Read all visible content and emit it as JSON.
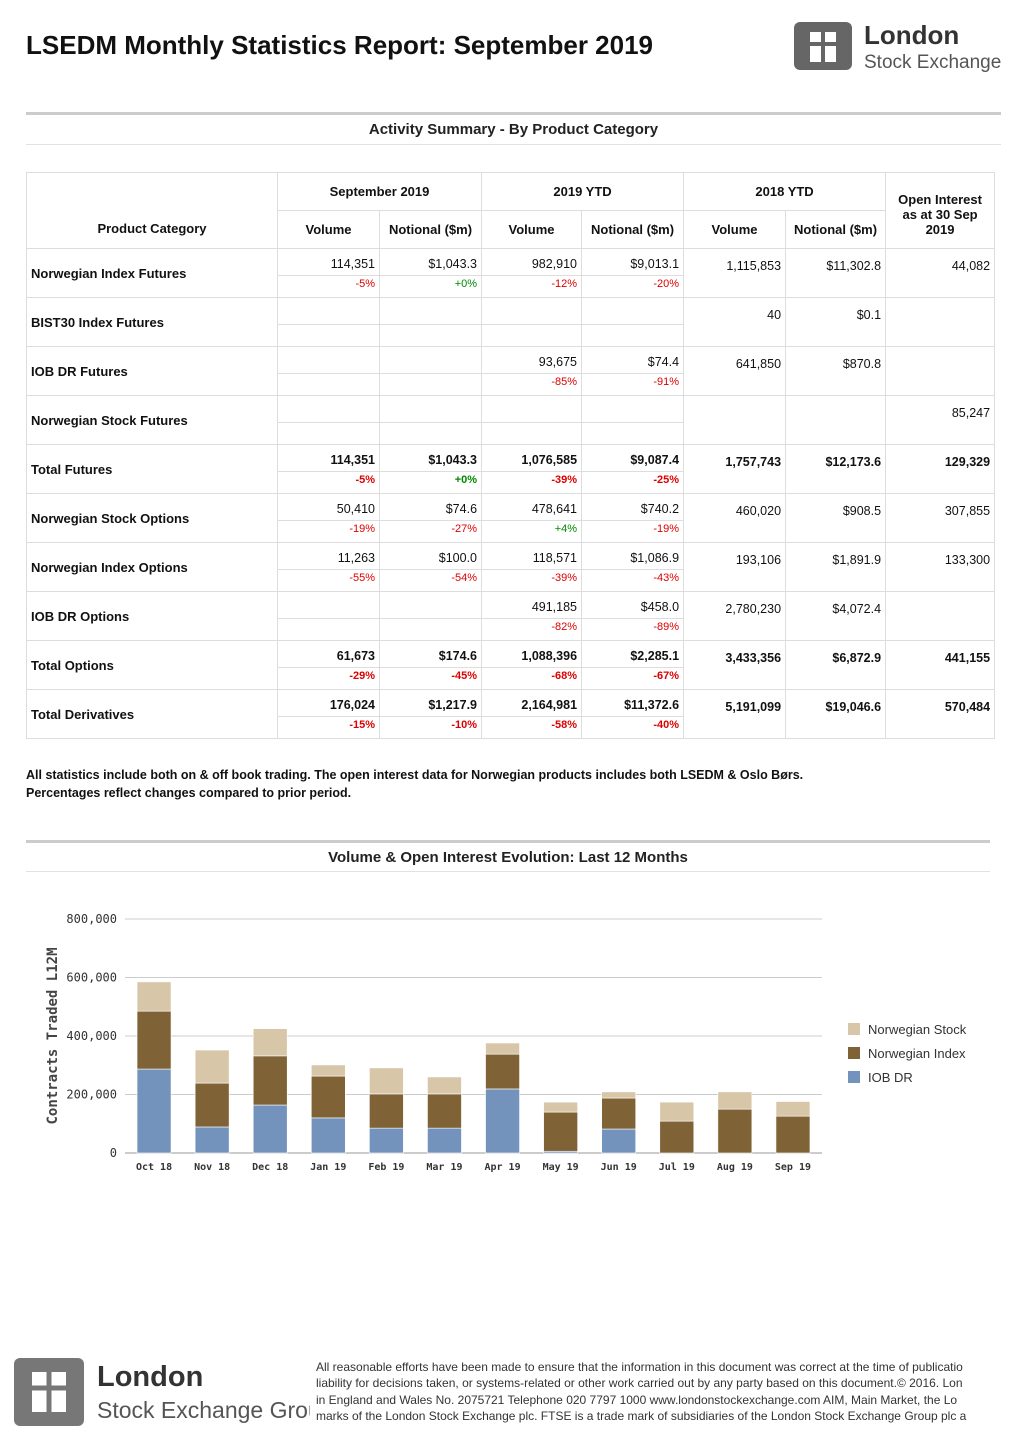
{
  "header": {
    "title": "LSEDM Monthly Statistics Report: September 2019",
    "logo": [
      "London",
      "Stock Exchange"
    ]
  },
  "activity": {
    "title": "Activity Summary - By Product Category",
    "table": {
      "groups": [
        "September 2019",
        "2019 YTD",
        "2018 YTD"
      ],
      "open_interest": "Open Interest as at 30 Sep 2019",
      "product_header": "Product Category",
      "volume": "Volume",
      "notional": "Notional ($m)",
      "rows": [
        {
          "label": "Norwegian Index Futures",
          "bold": false,
          "values": [
            "114,351",
            "$1,043.3",
            "982,910",
            "$9,013.1",
            "1,115,853",
            "$11,302.8",
            "44,082"
          ],
          "changes": [
            "-5%",
            "+0%",
            "-12%",
            "-20%"
          ]
        },
        {
          "label": "BIST30 Index Futures",
          "bold": false,
          "values": [
            null,
            null,
            null,
            null,
            "40",
            "$0.1",
            null
          ],
          "changes": [
            null,
            null,
            null,
            null
          ]
        },
        {
          "label": "IOB DR Futures",
          "bold": false,
          "values": [
            null,
            null,
            "93,675",
            "$74.4",
            "641,850",
            "$870.8",
            null
          ],
          "changes": [
            null,
            null,
            "-85%",
            "-91%"
          ]
        },
        {
          "label": "Norwegian Stock Futures",
          "bold": false,
          "values": [
            null,
            null,
            null,
            null,
            null,
            null,
            "85,247"
          ],
          "changes": [
            null,
            null,
            null,
            null
          ]
        },
        {
          "label": "Total Futures",
          "bold": true,
          "values": [
            "114,351",
            "$1,043.3",
            "1,076,585",
            "$9,087.4",
            "1,757,743",
            "$12,173.6",
            "129,329"
          ],
          "changes": [
            "-5%",
            "+0%",
            "-39%",
            "-25%"
          ]
        },
        {
          "label": "Norwegian Stock Options",
          "bold": false,
          "values": [
            "50,410",
            "$74.6",
            "478,641",
            "$740.2",
            "460,020",
            "$908.5",
            "307,855"
          ],
          "changes": [
            "-19%",
            "-27%",
            "+4%",
            "-19%"
          ]
        },
        {
          "label": "Norwegian Index Options",
          "bold": false,
          "values": [
            "11,263",
            "$100.0",
            "118,571",
            "$1,086.9",
            "193,106",
            "$1,891.9",
            "133,300"
          ],
          "changes": [
            "-55%",
            "-54%",
            "-39%",
            "-43%"
          ]
        },
        {
          "label": "IOB DR Options",
          "bold": false,
          "values": [
            null,
            null,
            "491,185",
            "$458.0",
            "2,780,230",
            "$4,072.4",
            null
          ],
          "changes": [
            null,
            null,
            "-82%",
            "-89%"
          ]
        },
        {
          "label": "Total Options",
          "bold": true,
          "values": [
            "61,673",
            "$174.6",
            "1,088,396",
            "$2,285.1",
            "3,433,356",
            "$6,872.9",
            "441,155"
          ],
          "changes": [
            "-29%",
            "-45%",
            "-68%",
            "-67%"
          ]
        },
        {
          "label": "Total Derivatives",
          "bold": true,
          "values": [
            "176,024",
            "$1,217.9",
            "2,164,981",
            "$11,372.6",
            "5,191,099",
            "$19,046.6",
            "570,484"
          ],
          "changes": [
            "-15%",
            "-10%",
            "-58%",
            "-40%"
          ]
        }
      ]
    },
    "notes": [
      "All statistics include both on & off book trading. The open interest data for Norwegian products includes both LSEDM & Oslo Børs.",
      "Percentages reflect changes compared to prior period."
    ]
  },
  "chart_section_title": "Volume & Open Interest Evolution: Last 12 Months",
  "chart_data": {
    "type": "stacked_bar",
    "y_label": "Contracts Traded L12M",
    "categories": [
      "Oct 18",
      "Nov 18",
      "Dec 18",
      "Jan 19",
      "Feb 19",
      "Mar 19",
      "Apr 19",
      "May 19",
      "Jun 19",
      "Jul 19",
      "Aug 19",
      "Sep 19"
    ],
    "series": [
      {
        "name": "IOB DR",
        "color": "#7393bd",
        "values": [
          287000,
          89000,
          164000,
          120000,
          85000,
          85000,
          219000,
          6000,
          82000,
          0,
          0,
          0
        ]
      },
      {
        "name": "Norwegian Index",
        "color": "#7f6235",
        "values": [
          198000,
          150000,
          168000,
          143000,
          117000,
          117000,
          119000,
          134000,
          106000,
          109000,
          150000,
          126000
        ]
      },
      {
        "name": "Norwegian Stock",
        "color": "#d8c6a9",
        "values": [
          100000,
          113000,
          93000,
          38000,
          89000,
          58000,
          38000,
          34000,
          21000,
          65000,
          59000,
          50000
        ]
      }
    ],
    "ylim": [
      0,
      800000
    ],
    "yticks": [
      0,
      {
        "value": 200000,
        "label": "200,000"
      },
      {
        "value": 400000,
        "label": "400,000"
      },
      {
        "value": 600000,
        "label": "600,000"
      },
      {
        "value": 800000,
        "label": "800,000"
      }
    ],
    "grid": true,
    "legend": "right"
  },
  "footer": {
    "logo": [
      "London",
      "Stock Exchange Group"
    ],
    "disclaimer": [
      "All reasonable efforts have been made to ensure that the information in this document was correct at the time of publicatio",
      "liability for decisions taken, or systems-related or other work carried out by any party based on this document.© 2016. Lon",
      "in England and Wales No. 2075721 Telephone 020 7797 1000 www.londonstockexchange.com AIM, Main Market, the Lo",
      "marks of the London Stock Exchange plc. FTSE is a trade mark of subsidiaries of the London Stock Exchange Group plc a"
    ]
  }
}
